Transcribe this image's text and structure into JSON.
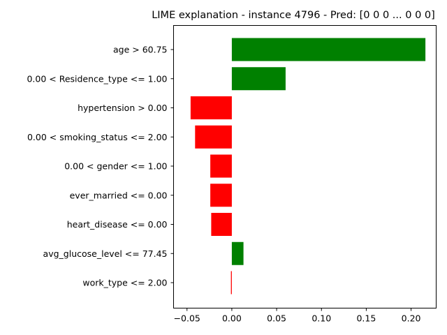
{
  "chart_data": {
    "type": "bar",
    "orientation": "horizontal",
    "title": "LIME explanation - instance 4796 - Pred: [0 0 0 ... 0 0 0]",
    "xlabel": "",
    "ylabel": "",
    "xlim": [
      -0.065,
      0.228
    ],
    "grid": false,
    "legend": "none",
    "categories": [
      "age > 60.75",
      "0.00 < Residence_type <= 1.00",
      "hypertension > 0.00",
      "0.00 < smoking_status <= 2.00",
      "0.00 < gender <= 1.00",
      "ever_married <= 0.00",
      "heart_disease <= 0.00",
      "avg_glucose_level <= 77.45",
      "work_type <= 2.00"
    ],
    "values": [
      0.216,
      0.06,
      -0.046,
      -0.041,
      -0.024,
      -0.024,
      -0.023,
      0.013,
      -0.001
    ],
    "xticks": [
      -0.05,
      0.0,
      0.05,
      0.1,
      0.15,
      0.2
    ],
    "xtick_labels": [
      "−0.05",
      "0.00",
      "0.05",
      "0.10",
      "0.15",
      "0.20"
    ],
    "colors": {
      "positive": "#008000",
      "negative": "#ff0000"
    }
  }
}
